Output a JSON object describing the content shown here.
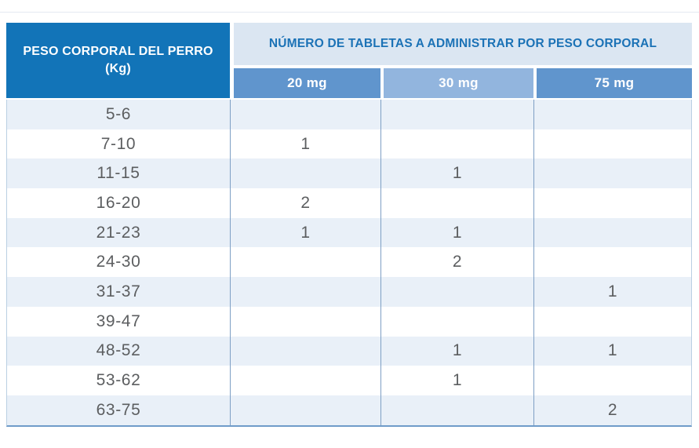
{
  "table": {
    "corner_header": {
      "line1": "PESO CORPORAL DEL PERRO",
      "line2": "(Kg)"
    },
    "span_header": "NÚMERO DE TABLETAS A ADMINISTRAR POR PESO CORPORAL",
    "dose_columns": [
      "20 mg",
      "30 mg",
      "75 mg"
    ],
    "rows": [
      {
        "weight": "5-6",
        "doses": [
          "",
          "",
          ""
        ]
      },
      {
        "weight": "7-10",
        "doses": [
          "1",
          "",
          ""
        ]
      },
      {
        "weight": "11-15",
        "doses": [
          "",
          "1",
          ""
        ]
      },
      {
        "weight": "16-20",
        "doses": [
          "2",
          "",
          ""
        ]
      },
      {
        "weight": "21-23",
        "doses": [
          "1",
          "1",
          ""
        ]
      },
      {
        "weight": "24-30",
        "doses": [
          "",
          "2",
          ""
        ]
      },
      {
        "weight": "31-37",
        "doses": [
          "",
          "",
          "1"
        ]
      },
      {
        "weight": "39-47",
        "doses": [
          "",
          "",
          ""
        ]
      },
      {
        "weight": "48-52",
        "doses": [
          "",
          "1",
          "1"
        ]
      },
      {
        "weight": "53-62",
        "doses": [
          "",
          "1",
          ""
        ]
      },
      {
        "weight": "63-75",
        "doses": [
          "",
          "",
          "2"
        ]
      }
    ],
    "colors": {
      "header_dark_blue": "#1274B8",
      "span_header_bg": "#DBE6F2",
      "span_header_text": "#1B72B6",
      "subheader_medium_blue": "#6095CD",
      "subheader_light_blue": "#92B5DE",
      "row_alt_bg": "#E9F0F8",
      "row_bg": "#FFFFFF",
      "body_text": "#5C5E60",
      "grid_line": "#7E9FC4"
    }
  }
}
